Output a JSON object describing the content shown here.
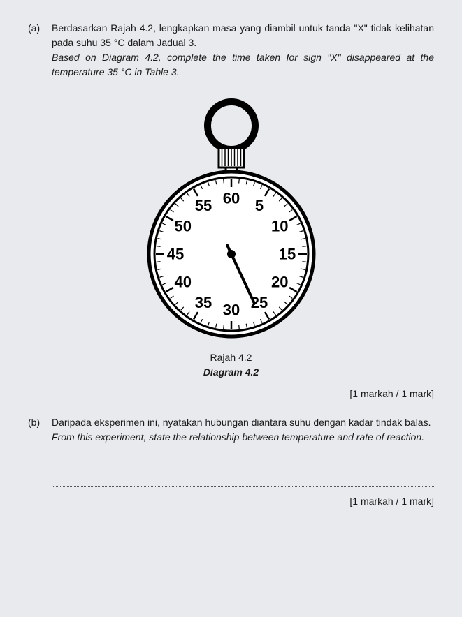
{
  "qa": {
    "label": "(a)",
    "line1": "Berdasarkan Rajah 4.2, lengkapkan masa yang diambil untuk tanda \"X\" tidak kelihatan pada suhu 35 °C dalam Jadual 3.",
    "line2": "Based on Diagram 4.2, complete the time taken for sign \"X\" disappeared at the temperature 35 °C in Table 3.",
    "caption_ms": "Rajah 4.2",
    "caption_en": "Diagram 4.2",
    "marks": "[1 markah / 1 mark]"
  },
  "qb": {
    "label": "(b)",
    "line1": "Daripada eksperimen ini, nyatakan hubungan diantara suhu dengan kadar tindak balas.",
    "line2": "From this experiment, state the relationship between temperature and rate of reaction.",
    "marks": "[1 markah / 1 mark]"
  },
  "stopwatch": {
    "face_radius": 110,
    "numbers": [
      "60",
      "5",
      "10",
      "15",
      "20",
      "25",
      "30",
      "35",
      "40",
      "45",
      "50",
      "55"
    ],
    "number_fontsize": 22,
    "number_color": "#000000",
    "outer_stroke": "#000000",
    "outer_stroke_width": 5,
    "inner_ring_width": 3,
    "bg": "#ffffff",
    "hand_angle_deg": 155,
    "hand_length": 78,
    "hand_width": 4,
    "tick_major_len": 12,
    "tick_minor_len": 6,
    "crown_w": 36,
    "crown_h": 28,
    "ring_outer_r": 34,
    "ring_inner_r": 24
  }
}
